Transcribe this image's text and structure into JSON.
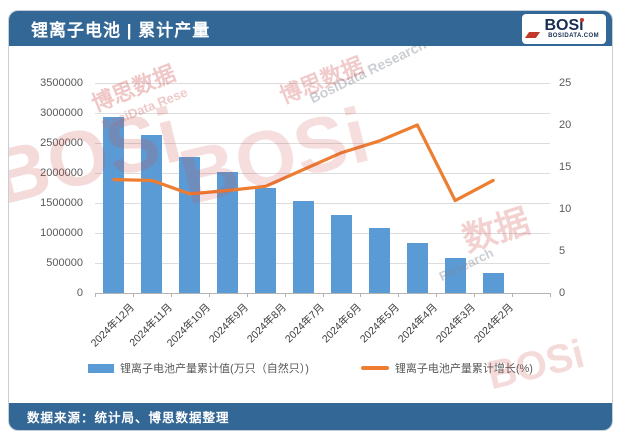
{
  "header": {
    "title": "锂离子电池 | 累计产量",
    "logo": {
      "text": "BOSi",
      "site": "BOSIDATA.COM"
    }
  },
  "footer": {
    "source": "数据来源：统计局、博思数据整理"
  },
  "colors": {
    "band_blue": "#336795",
    "bar_blue": "#5B9BD5",
    "line_orange": "#ED7D31",
    "gridline": "#DCDCDC"
  },
  "chart_data": {
    "type": "bar",
    "title": "锂离子电池 | 累计产量",
    "categories": [
      "2024年12月",
      "2024年11月",
      "2024年10月",
      "2024年9月",
      "2024年8月",
      "2024年7月",
      "2024年6月",
      "2024年5月",
      "2024年4月",
      "2024年3月",
      "2024年2月"
    ],
    "series": [
      {
        "name": "锂离子电池产量累计值(万只（自然只）)",
        "type": "bar",
        "axis": "left",
        "color": "#5B9BD5",
        "values": [
          2940000,
          2640000,
          2270000,
          2020000,
          1745000,
          1540000,
          1300000,
          1085000,
          830000,
          580000,
          330000
        ]
      },
      {
        "name": "锂离子电池产量累计增长(%)",
        "type": "line",
        "axis": "right",
        "color": "#ED7D31",
        "values": [
          13.5,
          13.4,
          11.8,
          12.2,
          12.7,
          14.7,
          16.7,
          18.1,
          20.0,
          11.0,
          13.4
        ]
      }
    ],
    "left_axis": {
      "min": 0,
      "max": 3500000,
      "step": 500000,
      "ticks": [
        "3500000",
        "3000000",
        "2500000",
        "2000000",
        "1500000",
        "1000000",
        "500000",
        "0"
      ]
    },
    "right_axis": {
      "min": 0,
      "max": 25,
      "step": 5,
      "ticks": [
        "25",
        "20",
        "15",
        "10",
        "5",
        "0"
      ]
    },
    "grid": true,
    "legend_position": "bottom"
  },
  "watermarks": [
    {
      "text": "BOSi"
    },
    {
      "text": "博思数据"
    },
    {
      "text": "BosiData Rese"
    },
    {
      "text": "BOSi"
    },
    {
      "text": "BosiData Research"
    },
    {
      "text": "数据"
    },
    {
      "text": "Research"
    },
    {
      "text": "BOSi"
    },
    {
      "text": "博思数据"
    }
  ]
}
